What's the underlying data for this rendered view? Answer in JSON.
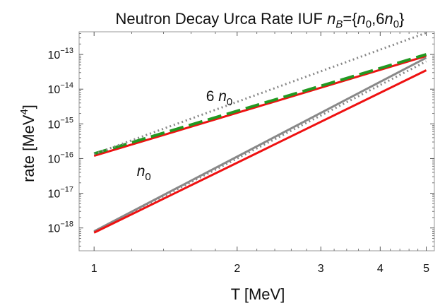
{
  "chart_data": {
    "type": "line",
    "title": {
      "prefix": "Neutron Decay Urca Rate IUF ",
      "nb": "n",
      "nb_sub": "B",
      "eq": "={",
      "n0a": "n",
      "n0a_sub": "0",
      "comma": ",",
      "six": "6",
      "n0b": "n",
      "n0b_sub": "0",
      "close": "}"
    },
    "xlabel": "T [MeV]",
    "ylabel": {
      "prefix": "rate [MeV",
      "sup": "4",
      "suffix": "]"
    },
    "x_scale": "log",
    "y_scale": "log",
    "xlim": [
      0.93,
      5.2
    ],
    "ylim": [
      2.2e-19,
      4.5e-13
    ],
    "x_ticks": [
      {
        "value": 1,
        "label": "1"
      },
      {
        "value": 2,
        "label": "2"
      },
      {
        "value": 3,
        "label": "3"
      },
      {
        "value": 4,
        "label": "4"
      },
      {
        "value": 5,
        "label": "5"
      }
    ],
    "y_ticks": [
      {
        "value": 1e-18,
        "base": "10",
        "exp": "−18"
      },
      {
        "value": 1e-17,
        "base": "10",
        "exp": "−17"
      },
      {
        "value": 1e-16,
        "base": "10",
        "exp": "−16"
      },
      {
        "value": 1e-15,
        "base": "10",
        "exp": "−15"
      },
      {
        "value": 1e-14,
        "base": "10",
        "exp": "−14"
      },
      {
        "value": 1e-13,
        "base": "10",
        "exp": "−13"
      }
    ],
    "annotations": [
      {
        "text": "6 ",
        "var": "n",
        "sub": "0",
        "x": 1.72,
        "y": 4.5e-15
      },
      {
        "text": "",
        "var": "n",
        "sub": "0",
        "x": 1.23,
        "y": 3.2e-17
      }
    ],
    "grid": false,
    "frame": true,
    "series": [
      {
        "color": "#ee1111",
        "style": "solid",
        "x": [
          1,
          5
        ],
        "y": [
          1.2e-16,
          9e-14
        ]
      },
      {
        "color": "#229922",
        "style": "dashed",
        "x": [
          1,
          5
        ],
        "y": [
          1.38e-16,
          1e-13
        ]
      },
      {
        "color": "#888888",
        "style": "dotted",
        "x": [
          1,
          5
        ],
        "y": [
          1.35e-16,
          4.2e-13
        ]
      },
      {
        "color": "#888888",
        "style": "solid",
        "x": [
          1,
          5
        ],
        "y": [
          8e-19,
          8e-14
        ]
      },
      {
        "color": "#888888",
        "style": "dotted",
        "x": [
          1,
          5
        ],
        "y": [
          7.7e-19,
          6.3e-14
        ]
      },
      {
        "color": "#ee1111",
        "style": "solid",
        "x": [
          1,
          5
        ],
        "y": [
          7.3e-19,
          3.5e-14
        ]
      }
    ]
  }
}
